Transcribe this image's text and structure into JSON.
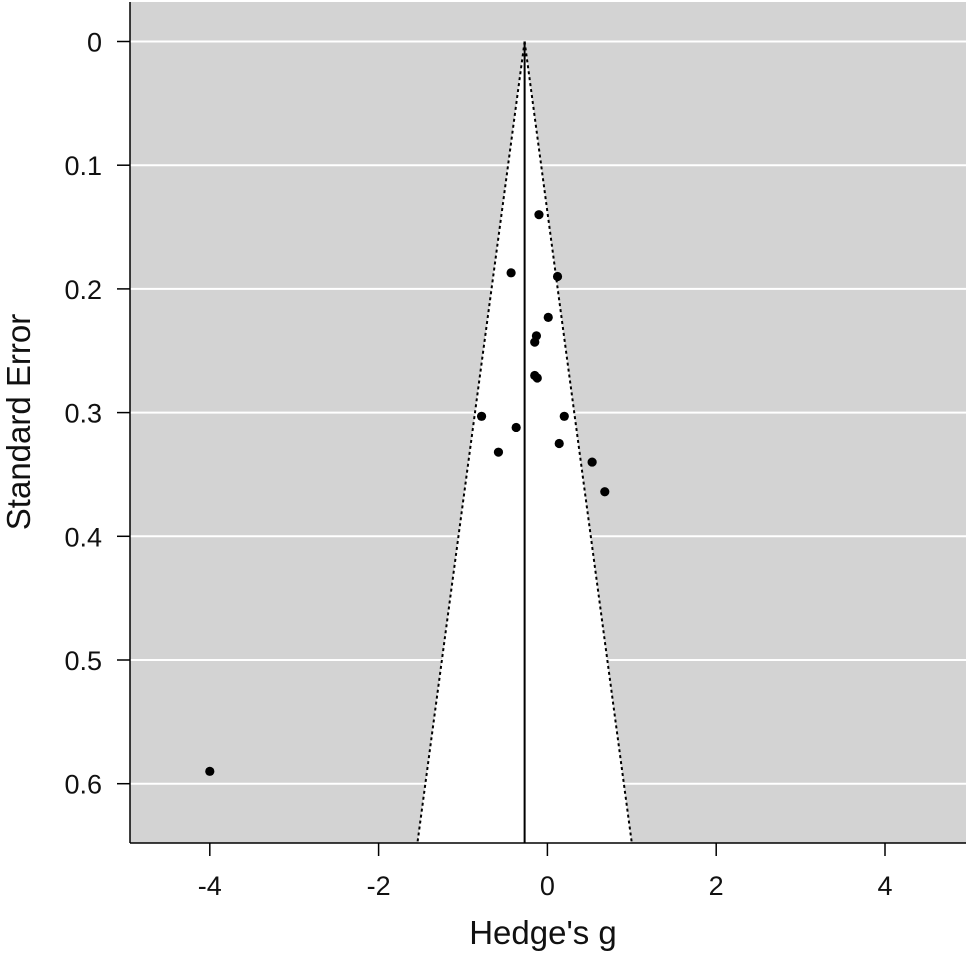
{
  "chart_data": {
    "type": "scatter",
    "subtype": "funnel-plot",
    "title": "",
    "xlabel": "Hedge's g",
    "ylabel": "Standard Error",
    "xlim": [
      -5,
      5
    ],
    "ylim": [
      0.65,
      0
    ],
    "y_axis_inverted": true,
    "x_ticks": [
      -4,
      -2,
      0,
      2,
      4
    ],
    "x_tick_labels": [
      "-4",
      "-2",
      "0",
      "2",
      "4"
    ],
    "y_ticks": [
      0,
      0.1,
      0.2,
      0.3,
      0.4,
      0.5,
      0.6
    ],
    "y_tick_labels": [
      "0",
      "0.1",
      "0.2",
      "0.3",
      "0.4",
      "0.5",
      "0.6"
    ],
    "grid": "horizontal",
    "pooled_estimate": -0.27,
    "ci_multiplier": 1.96,
    "colors": {
      "panel_background": "#d3d3d3",
      "funnel_fill": "#ffffff",
      "gridline": "#ffffff",
      "points": "#000000",
      "lines": "#000000"
    },
    "points": [
      {
        "x": -0.1,
        "y": 0.14
      },
      {
        "x": -0.43,
        "y": 0.187
      },
      {
        "x": 0.12,
        "y": 0.19
      },
      {
        "x": 0.01,
        "y": 0.223
      },
      {
        "x": -0.13,
        "y": 0.238
      },
      {
        "x": -0.15,
        "y": 0.243
      },
      {
        "x": -0.15,
        "y": 0.27
      },
      {
        "x": -0.12,
        "y": 0.272
      },
      {
        "x": -0.78,
        "y": 0.303
      },
      {
        "x": 0.2,
        "y": 0.303
      },
      {
        "x": -0.37,
        "y": 0.312
      },
      {
        "x": 0.14,
        "y": 0.325
      },
      {
        "x": -0.58,
        "y": 0.332
      },
      {
        "x": 0.53,
        "y": 0.34
      },
      {
        "x": 0.68,
        "y": 0.364
      },
      {
        "x": -4.0,
        "y": 0.59
      }
    ]
  }
}
